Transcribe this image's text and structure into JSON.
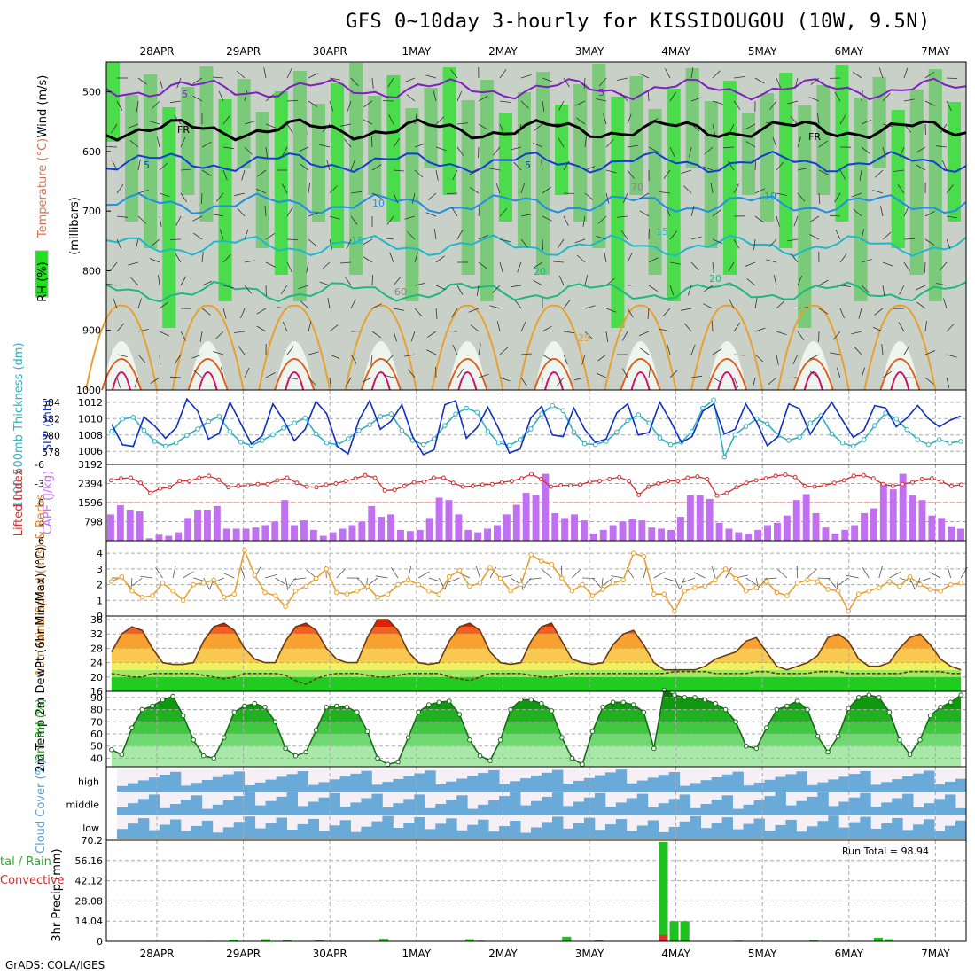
{
  "title": "GFS 0~10day 3-hourly for KISSIDOUGOU (10W, 9.5N)",
  "footer": "GrADS: COLA/IGES",
  "dates": [
    "28APR",
    "29APR",
    "30APR",
    "1MAY",
    "2MAY",
    "3MAY",
    "4MAY",
    "5MAY",
    "6MAY",
    "7MAY"
  ],
  "chart_data": [
    {
      "type": "heatmap",
      "panel": "upper-air",
      "ylabel": "(millibars)",
      "legend_labels": [
        "RH (%)",
        "Temperature (°C)",
        "Wind (m/s)"
      ],
      "yticks": [
        500,
        600,
        700,
        800,
        900,
        1000
      ],
      "ylim": [
        450,
        1000
      ],
      "contour_labels": [
        "5",
        "5",
        "FR",
        "FR",
        "5",
        "5",
        "10",
        "10",
        "15",
        "15",
        "20",
        "20",
        "25",
        "60",
        "70"
      ],
      "isotherms": [
        {
          "name": "-5",
          "level": 495
        },
        {
          "name": "0 (FR)",
          "level": 563
        },
        {
          "name": "5",
          "level": 618
        },
        {
          "name": "10",
          "level": 688
        },
        {
          "name": "15",
          "level": 758
        },
        {
          "name": "20",
          "level": 835
        }
      ]
    },
    {
      "type": "line",
      "panel": "slp-thickness",
      "ylabel_left": "1000-500mb Thickness (dm)",
      "ylabel_right": "SLP (mb)",
      "yticks_left": [
        578,
        580,
        582,
        584
      ],
      "yticks_right": [
        1006,
        1008,
        1010,
        1012
      ],
      "ylim_right": [
        1004.4,
        1013.5
      ],
      "ylim_left": [
        576.5,
        585.5
      ],
      "series": [
        {
          "name": "SLP",
          "color": "#1030c0",
          "values": [
            1009.3,
            1006.8,
            1006.6,
            1010.2,
            1009.1,
            1007.6,
            1008.9,
            1012.4,
            1010.9,
            1007.5,
            1008.2,
            1012.0,
            1009.4,
            1006.9,
            1007.9,
            1011.8,
            1009.8,
            1007.3,
            1008.7,
            1012.1,
            1010.6,
            1006.6,
            1005.7,
            1009.8,
            1012.2,
            1008.7,
            1009.7,
            1011.7,
            1007.8,
            1005.6,
            1006.2,
            1011.7,
            1012.2,
            1007.6,
            1008.9,
            1011.4,
            1008.8,
            1005.8,
            1006.3,
            1010.1,
            1011.5,
            1008.0,
            1007.8,
            1011.3,
            1008.7,
            1007.1,
            1007.5,
            1010.7,
            1011.8,
            1008.0,
            1008.3,
            1012.0,
            1009.7,
            1007.1,
            1007.8,
            1010.9,
            1011.8,
            1008.1,
            1008.7,
            1011.8,
            1009.6,
            1006.7,
            1007.8,
            1011.8,
            1011.2,
            1008.1,
            1010.1,
            1012.0,
            1009.8,
            1007.7,
            1008.6,
            1011.6,
            1011.3,
            1009.0,
            1010.1,
            1011.6,
            1010.0,
            1009.0,
            1009.8,
            1010.3
          ]
        },
        {
          "name": "Thickness",
          "color": "#30b0c0",
          "values": [
            580.5,
            582.0,
            582.2,
            580.6,
            579.3,
            578.7,
            579.1,
            580.0,
            580.8,
            581.7,
            582.3,
            580.5,
            579.2,
            578.8,
            579.4,
            580.1,
            580.9,
            581.5,
            582.1,
            580.2,
            579.1,
            578.9,
            579.6,
            580.6,
            581.3,
            582.3,
            582.6,
            580.6,
            579.4,
            578.9,
            579.6,
            581.2,
            582.6,
            583.3,
            582.8,
            580.5,
            579.1,
            578.8,
            579.5,
            580.8,
            582.6,
            583.6,
            583.0,
            580.4,
            579.0,
            578.9,
            579.3,
            580.4,
            581.8,
            582.5,
            581.5,
            579.7,
            578.9,
            579.2,
            580.5,
            583.3,
            584.3,
            577.4,
            580.1,
            581.1,
            582.0,
            581.4,
            580.0,
            579.4,
            579.8,
            581.5,
            582.4,
            580.2,
            579.1,
            578.7,
            579.5,
            581.2,
            582.7,
            582.0,
            580.7,
            579.5,
            578.9,
            579.5,
            579.1,
            579.3
          ]
        }
      ]
    },
    {
      "type": "bar",
      "panel": "cape-lifted-index",
      "ylabel_left": "Lifted Index",
      "ylabel_right": "CAPE (J/kg)",
      "yticks_left": [
        -6,
        -3,
        0,
        3,
        6
      ],
      "yticks_right": [
        798,
        1596,
        2394,
        3192
      ],
      "ylim_cape": [
        0,
        3192
      ],
      "ylim_li": [
        6,
        -6
      ],
      "series": [
        {
          "name": "CAPE",
          "color": "#c070f0",
          "values": [
            1100,
            1480,
            1300,
            1220,
            100,
            250,
            200,
            350,
            950,
            1300,
            1300,
            1450,
            500,
            500,
            500,
            550,
            650,
            800,
            1700,
            650,
            850,
            450,
            200,
            350,
            500,
            650,
            800,
            1450,
            1000,
            1100,
            450,
            400,
            450,
            950,
            1800,
            1700,
            1100,
            450,
            350,
            500,
            650,
            1100,
            1500,
            2000,
            1900,
            2800,
            1150,
            950,
            1100,
            850,
            300,
            450,
            650,
            800,
            900,
            850,
            550,
            500,
            450,
            1000,
            1900,
            1900,
            1750,
            750,
            500,
            350,
            300,
            450,
            650,
            750,
            1050,
            1700,
            1950,
            1150,
            550,
            300,
            450,
            650,
            1150,
            1350,
            2400,
            2150,
            2800,
            1900,
            1700,
            1050,
            950,
            600,
            500
          ]
        },
        {
          "name": "Lifted Index",
          "color": "#d03030",
          "values": [
            -3.5,
            -3.8,
            -3.9,
            -3.1,
            -1.5,
            -2.2,
            -2.4,
            -3.4,
            -3.4,
            -3.9,
            -4.2,
            -3.6,
            -2.4,
            -2.6,
            -2.7,
            -2.9,
            -2.9,
            -3.5,
            -3.9,
            -3.1,
            -2.5,
            -2.4,
            -2.8,
            -3.0,
            -3.4,
            -3.8,
            -4.3,
            -3.9,
            -1.9,
            -2.0,
            -2.6,
            -3.2,
            -3.3,
            -3.9,
            -3.9,
            -3.1,
            -2.5,
            -2.6,
            -2.8,
            -2.9,
            -3.2,
            -3.4,
            -3.8,
            -4.5,
            -3.7,
            -2.5,
            -2.7,
            -2.7,
            -2.8,
            -3.3,
            -3.4,
            -3.7,
            -4.0,
            -3.4,
            -1.2,
            -2.5,
            -3.0,
            -3.4,
            -3.4,
            -3.9,
            -4.1,
            -3.7,
            -1.1,
            -1.5,
            -2.4,
            -3.1,
            -3.5,
            -3.8,
            -4.2,
            -4.4,
            -4.0,
            -2.6,
            -2.5,
            -2.7,
            -3.1,
            -3.5,
            -4.2,
            -4.3,
            -3.8,
            -2.9,
            -2.6,
            -2.9,
            -3.2,
            -3.7,
            -3.8,
            -3.3,
            -2.6,
            -2.8
          ]
        }
      ]
    },
    {
      "type": "line",
      "panel": "wind10m",
      "ylabel": "10m Wind Speed (m/s) & Barbs",
      "yticks": [
        0,
        1,
        2,
        3,
        4
      ],
      "ylim": [
        0,
        4.8
      ],
      "series": [
        {
          "name": "Wind Speed",
          "color": "#e8a030",
          "values": [
            2.2,
            2.5,
            1.6,
            1.2,
            1.3,
            2.1,
            1.6,
            1.0,
            2.0,
            2.1,
            2.3,
            1.2,
            1.4,
            4.2,
            2.6,
            1.5,
            1.3,
            0.6,
            1.6,
            1.9,
            2.4,
            3.0,
            1.5,
            1.4,
            1.6,
            1.9,
            1.2,
            1.4,
            2.0,
            2.3,
            2.0,
            1.6,
            1.4,
            2.5,
            2.9,
            1.9,
            2.1,
            3.1,
            2.4,
            1.6,
            2.0,
            3.9,
            3.5,
            3.3,
            2.4,
            1.6,
            2.0,
            1.3,
            1.7,
            2.1,
            2.3,
            4.0,
            3.8,
            1.4,
            1.4,
            0.3,
            1.6,
            1.8,
            1.9,
            2.3,
            3.0,
            2.4,
            1.6,
            1.8,
            2.2,
            1.5,
            1.3,
            2.1,
            2.3,
            2.2,
            1.7,
            1.6,
            0.3,
            1.4,
            1.6,
            1.8,
            2.2,
            1.9,
            2.5,
            2.0,
            1.7,
            1.6,
            2.0,
            2.1
          ]
        }
      ]
    },
    {
      "type": "area",
      "panel": "temp-dewpoint",
      "ylabel": "2m Temp 2m DewPt (6hr Min/Max) (°C)",
      "yticks": [
        16,
        20,
        24,
        28,
        32,
        36
      ],
      "ylim": [
        16,
        37
      ],
      "series": [
        {
          "name": "2m Temp",
          "color": "#cc3300",
          "values": [
            27,
            32,
            34,
            33,
            28,
            24,
            23.5,
            23.5,
            24,
            30,
            34,
            35,
            33,
            28,
            25,
            24,
            24,
            30,
            34,
            35,
            33,
            28,
            25,
            24,
            24,
            31,
            36,
            36,
            33,
            27,
            24,
            23.5,
            24,
            30,
            34,
            35,
            33,
            27,
            24,
            23.5,
            24,
            30,
            34,
            35,
            30,
            25,
            24,
            23.5,
            24,
            29,
            32,
            33,
            29,
            24,
            22,
            22,
            22,
            22,
            23,
            25,
            26,
            27,
            30,
            31,
            27,
            23,
            22,
            23,
            24,
            26,
            31,
            32,
            30,
            25,
            23,
            23,
            24,
            28,
            31,
            32,
            29,
            25,
            23,
            22
          ]
        },
        {
          "name": "2m DewPt",
          "color": "#6a3a10",
          "values": [
            21,
            20.5,
            20,
            20,
            21,
            21,
            21,
            21,
            21,
            20.5,
            20,
            19.5,
            20,
            21,
            21,
            21,
            21,
            20.5,
            19,
            18,
            19.5,
            20.5,
            21,
            21,
            21,
            20.5,
            20,
            20,
            20.5,
            21,
            21,
            21,
            21,
            20,
            19.5,
            19,
            20,
            21,
            21,
            21,
            21,
            20.5,
            20,
            20,
            20.5,
            21,
            21,
            21,
            21,
            21,
            21,
            21,
            21,
            21,
            21,
            21.5,
            21.5,
            21.5,
            21.5,
            21,
            21,
            21,
            21,
            21.5,
            21.5,
            21,
            21,
            21,
            21,
            21.5,
            21.5,
            21.5,
            21,
            21,
            21,
            21,
            21,
            21,
            21.5,
            21.5,
            21.5,
            21.5,
            21,
            21
          ]
        }
      ]
    },
    {
      "type": "area",
      "panel": "rh2m",
      "ylabel": "2m RH (%)",
      "yticks": [
        40,
        50,
        60,
        70,
        80,
        90
      ],
      "ylim": [
        33,
        95
      ],
      "series": [
        {
          "name": "2m RH",
          "color": "#20a020",
          "values": [
            47,
            43,
            65,
            80,
            83,
            88,
            91,
            75,
            55,
            42,
            40,
            57,
            78,
            83,
            85,
            82,
            70,
            48,
            42,
            45,
            63,
            82,
            83,
            82,
            78,
            62,
            40,
            35,
            37,
            57,
            78,
            84,
            86,
            87,
            76,
            55,
            42,
            38,
            55,
            80,
            88,
            88,
            85,
            79,
            57,
            40,
            35,
            62,
            82,
            86,
            86,
            84,
            78,
            48,
            96,
            92,
            90,
            90,
            88,
            85,
            80,
            70,
            50,
            48,
            65,
            80,
            83,
            87,
            80,
            58,
            45,
            58,
            81,
            90,
            92,
            90,
            78,
            55,
            43,
            55,
            75,
            82,
            86,
            92
          ]
        }
      ]
    },
    {
      "type": "heatmap",
      "panel": "cloud-cover",
      "ylabel": "Cloud Cover (%)",
      "row_labels": [
        "high",
        "middle",
        "low"
      ]
    },
    {
      "type": "bar",
      "panel": "precip",
      "ylabel": "3hr Precip (mm)",
      "side_label_1": "tal / Rain",
      "side_label_2": "Convective",
      "yticks": [
        0,
        14.04,
        28.08,
        42.12,
        56.16,
        70.2
      ],
      "ylim": [
        0,
        70.2
      ],
      "run_total_label": "Run Total = 98.94",
      "bars": [
        {
          "x": 51,
          "total": 69.0,
          "convective": 4.5
        },
        {
          "x": 52,
          "total": 14.0,
          "convective": 0
        },
        {
          "x": 53,
          "total": 14.0,
          "convective": 0
        }
      ],
      "small_bars": [
        {
          "x": 2,
          "total": 0.3
        },
        {
          "x": 9,
          "total": 0.4
        },
        {
          "x": 11,
          "total": 1.2
        },
        {
          "x": 14,
          "total": 1.5
        },
        {
          "x": 16,
          "total": 0.8
        },
        {
          "x": 19,
          "total": 0.6
        },
        {
          "x": 25,
          "total": 1.8
        },
        {
          "x": 33,
          "total": 1.5
        },
        {
          "x": 34,
          "total": 0.5
        },
        {
          "x": 42,
          "total": 3.2
        },
        {
          "x": 45,
          "total": 0.6
        },
        {
          "x": 58,
          "total": 0.5
        },
        {
          "x": 65,
          "total": 0.8
        },
        {
          "x": 71,
          "total": 2.5
        },
        {
          "x": 72,
          "total": 1.5
        }
      ]
    }
  ]
}
